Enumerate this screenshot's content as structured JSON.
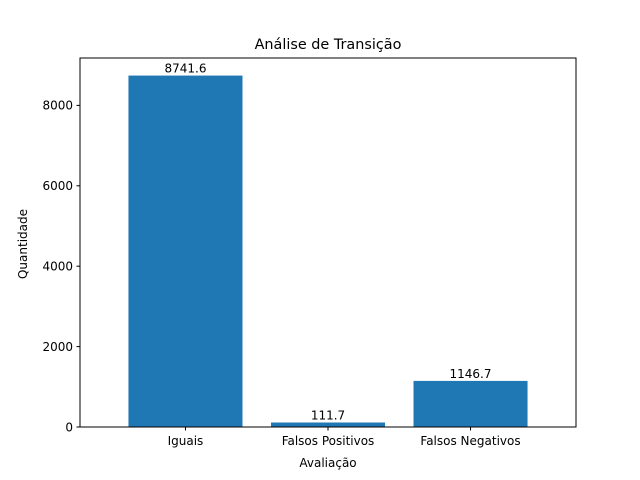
{
  "chart_data": {
    "type": "bar",
    "title": "Análise de Transição",
    "xlabel": "Avaliação",
    "ylabel": "Quantidade",
    "categories": [
      "Iguais",
      "Falsos Positivos",
      "Falsos Negativos"
    ],
    "values": [
      8741.6,
      111.7,
      1146.7
    ],
    "value_labels": [
      "8741.6",
      "111.7",
      "1146.7"
    ],
    "ylim": [
      0,
      9178.68
    ],
    "yticks": [
      0,
      2000,
      4000,
      6000,
      8000
    ],
    "bar_color": "#1f77b4",
    "grid": false,
    "legend": "none"
  }
}
